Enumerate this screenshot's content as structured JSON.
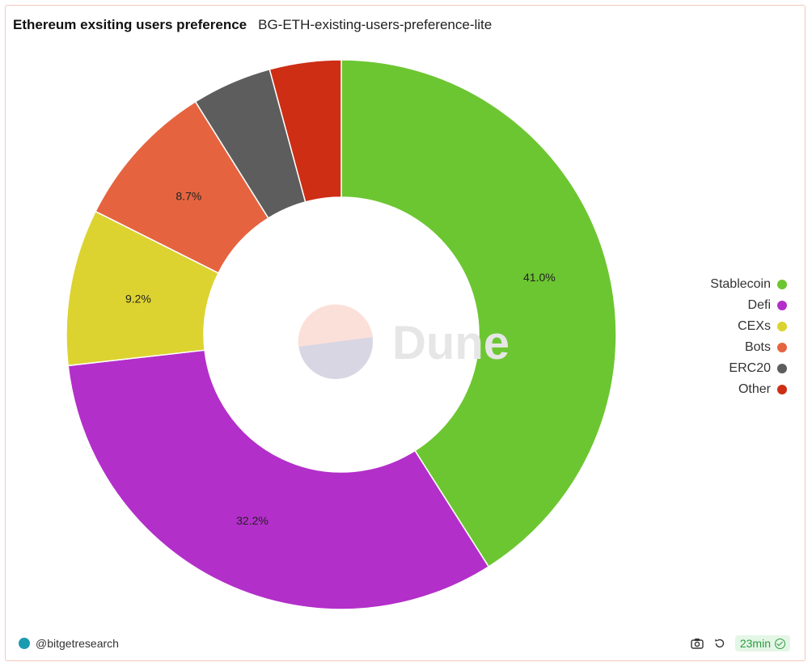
{
  "header": {
    "title": "Ethereum exsiting users preference",
    "subtitle": "BG-ETH-existing-users-preference-lite"
  },
  "watermark": {
    "text": "Dune"
  },
  "chart_data": {
    "type": "pie",
    "donut": true,
    "categories": [
      "Stablecoin",
      "Defi",
      "CEXs",
      "Bots",
      "ERC20",
      "Other"
    ],
    "values": [
      41.0,
      32.2,
      9.2,
      8.7,
      4.7,
      4.2
    ],
    "data_labels": [
      "41.0%",
      "32.2%",
      "9.2%",
      "8.7%",
      "",
      ""
    ],
    "colors": [
      "#6cc631",
      "#b32fc9",
      "#dcd330",
      "#e5643f",
      "#5d5d5d",
      "#cd2e14"
    ],
    "legend_position": "right"
  },
  "footer": {
    "author": "@bitgetresearch",
    "camera_icon": "camera-icon",
    "refresh_icon": "refresh-icon",
    "age": "23min"
  }
}
